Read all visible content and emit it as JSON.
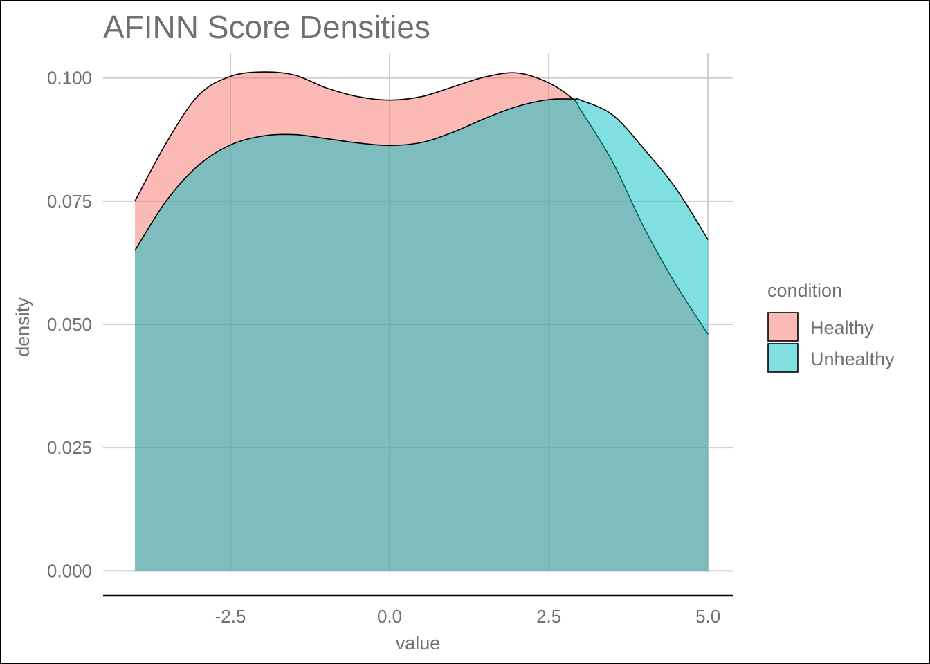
{
  "chart_data": {
    "type": "area",
    "title": "AFINN Score Densities",
    "xlabel": "value",
    "ylabel": "density",
    "xlim": [
      -4.5,
      5.4
    ],
    "ylim": [
      -0.005,
      0.105
    ],
    "x_ticks": [
      -2.5,
      0.0,
      2.5,
      5.0
    ],
    "x_tick_labels": [
      "-2.5",
      "0.0",
      "2.5",
      "5.0"
    ],
    "y_ticks": [
      0.0,
      0.025,
      0.05,
      0.075,
      0.1
    ],
    "y_tick_labels": [
      "0.000",
      "0.025",
      "0.050",
      "0.075",
      "0.100"
    ],
    "grid": true,
    "legend": {
      "title": "condition",
      "placement": "right"
    },
    "x": [
      -4.0,
      -3.5,
      -3.0,
      -2.5,
      -2.0,
      -1.5,
      -1.0,
      -0.5,
      0.0,
      0.5,
      1.0,
      1.5,
      2.0,
      2.5,
      2.9,
      3.0,
      3.5,
      4.0,
      4.5,
      5.0
    ],
    "series": [
      {
        "name": "Healthy",
        "color": "#F8766D",
        "values": [
          0.075,
          0.087,
          0.0965,
          0.1003,
          0.1012,
          0.1006,
          0.098,
          0.0962,
          0.0955,
          0.0962,
          0.0982,
          0.1002,
          0.101,
          0.099,
          0.0955,
          0.0935,
          0.083,
          0.0695,
          0.058,
          0.048
        ]
      },
      {
        "name": "Unhealthy",
        "color": "#00BFC4",
        "values": [
          0.065,
          0.0752,
          0.0823,
          0.0864,
          0.0882,
          0.0885,
          0.0877,
          0.0868,
          0.0863,
          0.0869,
          0.089,
          0.0918,
          0.0942,
          0.0956,
          0.0957,
          0.0955,
          0.0925,
          0.0855,
          0.0775,
          0.0672
        ]
      }
    ]
  }
}
